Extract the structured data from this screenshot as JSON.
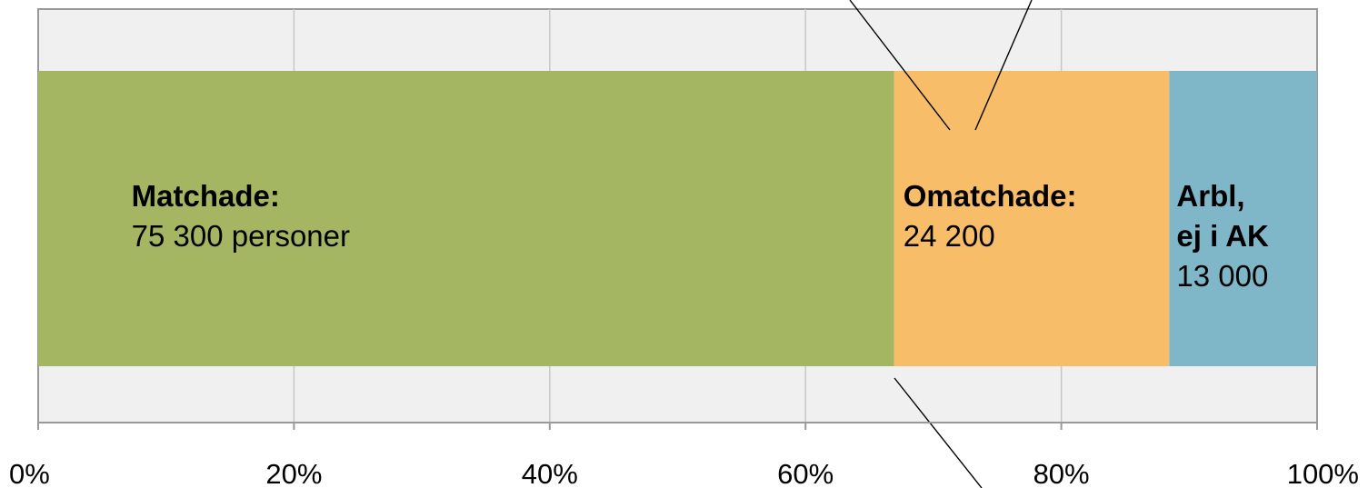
{
  "chart_data": {
    "type": "bar",
    "orientation": "horizontal",
    "stacked": true,
    "normalized": "100%",
    "xlim": [
      0,
      100
    ],
    "xticks": [
      "0%",
      "20%",
      "40%",
      "60%",
      "80%",
      "100%"
    ],
    "grid": true,
    "series": [
      {
        "label_lines": [
          "Matchade:"
        ],
        "value_text": "75 300 personer",
        "value": 75300,
        "color": "#a4b661"
      },
      {
        "label_lines": [
          "Omatchade:"
        ],
        "value_text": "24 200",
        "value": 24200,
        "color": "#f7bd68"
      },
      {
        "label_lines": [
          "Arbl,",
          "ej i AK"
        ],
        "value_text": "13 000",
        "value": 13000,
        "color": "#7fb6c8"
      }
    ]
  }
}
